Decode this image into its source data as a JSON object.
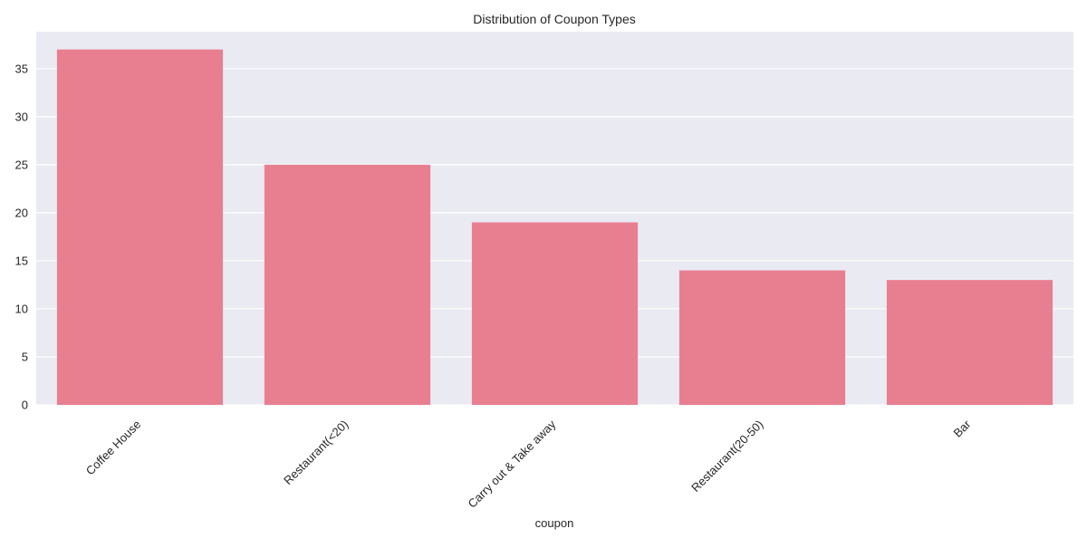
{
  "chart_data": {
    "type": "bar",
    "title": "Distribution of Coupon Types",
    "xlabel": "coupon",
    "ylabel": "",
    "categories": [
      "Coffee House",
      "Restaurant(<20)",
      "Carry out & Take away",
      "Restaurant(20-50)",
      "Bar"
    ],
    "values": [
      37,
      25,
      19,
      14,
      13
    ],
    "ylim": [
      0,
      38.85
    ],
    "yticks": [
      0,
      5,
      10,
      15,
      20,
      25,
      30,
      35
    ],
    "grid": true,
    "legend": "none",
    "colors": {
      "bar": "#e87f91",
      "plot_background": "#eaeaf2",
      "grid": "#ffffff",
      "text": "#262626"
    }
  }
}
